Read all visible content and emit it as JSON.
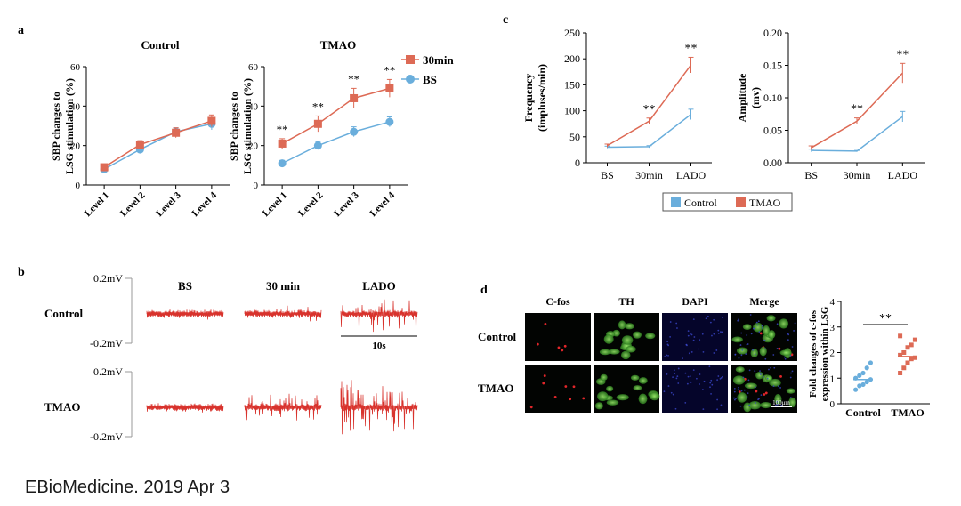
{
  "footer": {
    "citation": "EBioMedicine. 2019 Apr 3"
  },
  "panels": {
    "a": {
      "letter": "a"
    },
    "b": {
      "letter": "b"
    },
    "c": {
      "letter": "c"
    },
    "d": {
      "letter": "d"
    }
  },
  "colors": {
    "control": "#6aaedc",
    "tmao": "#dd6a55",
    "trace": "#d8322c"
  },
  "chart_data": [
    {
      "id": "a1",
      "type": "line",
      "title": "Control",
      "ylabel": "SBP changes to LSG stimulation (%)",
      "categories": [
        "Level 1",
        "Level 2",
        "Level 3",
        "Level 4"
      ],
      "ylim": [
        0,
        60
      ],
      "yticks": [
        "0",
        "20",
        "40",
        "60"
      ],
      "series": [
        {
          "key": "bs",
          "values": [
            8,
            18,
            27,
            31
          ],
          "err": [
            1.5,
            2,
            2,
            3
          ]
        },
        {
          "key": "t30",
          "values": [
            9,
            20.5,
            26.5,
            32.5
          ],
          "err": [
            1.5,
            2,
            2.5,
            3
          ]
        }
      ],
      "annotations": []
    },
    {
      "id": "a2",
      "type": "line",
      "title": "TMAO",
      "ylabel": "SBP changes to LSG stimulation (%)",
      "categories": [
        "Level 1",
        "Level 2",
        "Level 3",
        "Level 4"
      ],
      "ylim": [
        0,
        60
      ],
      "yticks": [
        "0",
        "20",
        "40",
        "60"
      ],
      "series": [
        {
          "key": "bs",
          "name": "BS",
          "values": [
            11,
            20,
            27,
            32
          ],
          "err": [
            1.5,
            2,
            2.5,
            2.5
          ]
        },
        {
          "key": "t30",
          "name": "30min",
          "values": [
            21,
            31,
            44,
            49
          ],
          "err": [
            2.5,
            4,
            5,
            4.5
          ]
        }
      ],
      "annotations": [
        "**",
        "**",
        "**",
        "**"
      ]
    },
    {
      "id": "c1",
      "type": "line",
      "title": "",
      "ylabel": "Frequency (impluses/min)",
      "categories": [
        "BS",
        "30min",
        "LADO"
      ],
      "ylim": [
        0,
        250
      ],
      "yticks": [
        "0",
        "50",
        "100",
        "150",
        "200",
        "250"
      ],
      "series": [
        {
          "key": "control",
          "name": "Control",
          "values": [
            30,
            31,
            93
          ],
          "err": [
            2,
            2,
            10
          ]
        },
        {
          "key": "tmao",
          "name": "TMAO",
          "values": [
            33,
            80,
            188
          ],
          "err": [
            3,
            6,
            15
          ]
        }
      ],
      "annotations": [
        "",
        "**",
        "**"
      ]
    },
    {
      "id": "c2",
      "type": "line",
      "title": "",
      "ylabel": "Amplitude (mv)",
      "categories": [
        "BS",
        "30min",
        "LADO"
      ],
      "ylim": [
        0,
        0.2
      ],
      "yticks": [
        "0.00",
        "0.05",
        "0.10",
        "0.15",
        "0.20"
      ],
      "series": [
        {
          "key": "control",
          "name": "Control",
          "values": [
            0.019,
            0.018,
            0.071
          ],
          "err": [
            0.002,
            0.001,
            0.008
          ]
        },
        {
          "key": "tmao",
          "name": "TMAO",
          "values": [
            0.023,
            0.064,
            0.138
          ],
          "err": [
            0.003,
            0.005,
            0.015
          ]
        }
      ],
      "annotations": [
        "",
        "**",
        "**"
      ]
    },
    {
      "id": "d",
      "type": "scatter",
      "title": "",
      "ylabel": "Fold changes of c-fos expression within LSG",
      "categories": [
        "Control",
        "TMAO"
      ],
      "ylim": [
        0,
        4
      ],
      "yticks": [
        "0",
        "1",
        "2",
        "3",
        "4"
      ],
      "series": [
        {
          "key": "control",
          "values": [
            0.55,
            0.7,
            0.75,
            0.85,
            0.95,
            1.0,
            1.1,
            1.2,
            1.4,
            1.6
          ],
          "mean": 0.95
        },
        {
          "key": "tmao",
          "values": [
            1.2,
            1.4,
            1.6,
            1.75,
            1.8,
            1.9,
            2.0,
            2.2,
            2.3,
            2.5,
            2.65
          ],
          "mean": 1.85
        }
      ],
      "annotations": [
        "**"
      ]
    }
  ],
  "legend_a": {
    "items": [
      {
        "key": "t30",
        "label": "30min"
      },
      {
        "key": "bs",
        "label": "BS"
      }
    ]
  },
  "legend_c": {
    "items": [
      {
        "key": "control",
        "label": "Control"
      },
      {
        "key": "tmao",
        "label": "TMAO"
      }
    ]
  },
  "traces": {
    "columns": [
      "BS",
      "30 min",
      "LADO"
    ],
    "rows": [
      "Control",
      "TMAO"
    ],
    "scale_top": "0.2mV",
    "scale_bottom": "-0.2mV",
    "time_scale": "10s",
    "amplitude": {
      "Control": [
        0.15,
        0.25,
        0.65
      ],
      "TMAO": [
        0.12,
        0.42,
        0.9
      ]
    }
  },
  "micrographs": {
    "columns": [
      "C-fos",
      "TH",
      "DAPI",
      "Merge"
    ],
    "rows": [
      "Control",
      "TMAO"
    ],
    "scale_bar": "100μm"
  }
}
